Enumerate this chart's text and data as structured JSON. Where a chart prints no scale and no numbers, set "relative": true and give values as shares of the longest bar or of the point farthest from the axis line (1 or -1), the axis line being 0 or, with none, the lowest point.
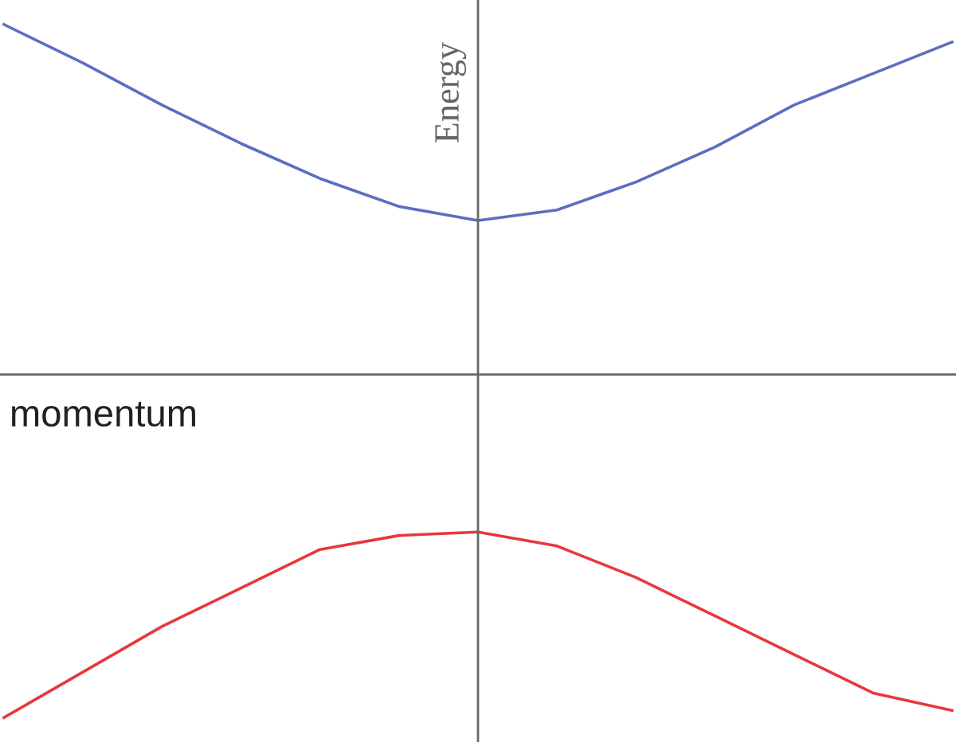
{
  "chart_data": {
    "type": "line",
    "relative": true,
    "xlabel": "momentum",
    "ylabel": "Energy",
    "categories": [
      null,
      null,
      null,
      null,
      null,
      null,
      null,
      null,
      null,
      null,
      null,
      null,
      null
    ],
    "series": [
      {
        "color": "#5b6ec2",
        "values": [
          1.0,
          0.89,
          0.77,
          0.66,
          0.56,
          0.48,
          0.44,
          0.47,
          0.55,
          0.65,
          0.77,
          0.86,
          0.95
        ]
      },
      {
        "color": "#e8383d",
        "values": [
          -0.98,
          -0.85,
          -0.72,
          -0.61,
          -0.5,
          -0.46,
          -0.45,
          -0.49,
          -0.58,
          -0.69,
          -0.8,
          -0.91,
          -0.96
        ]
      }
    ],
    "marker": "none",
    "line_style": "solid"
  }
}
